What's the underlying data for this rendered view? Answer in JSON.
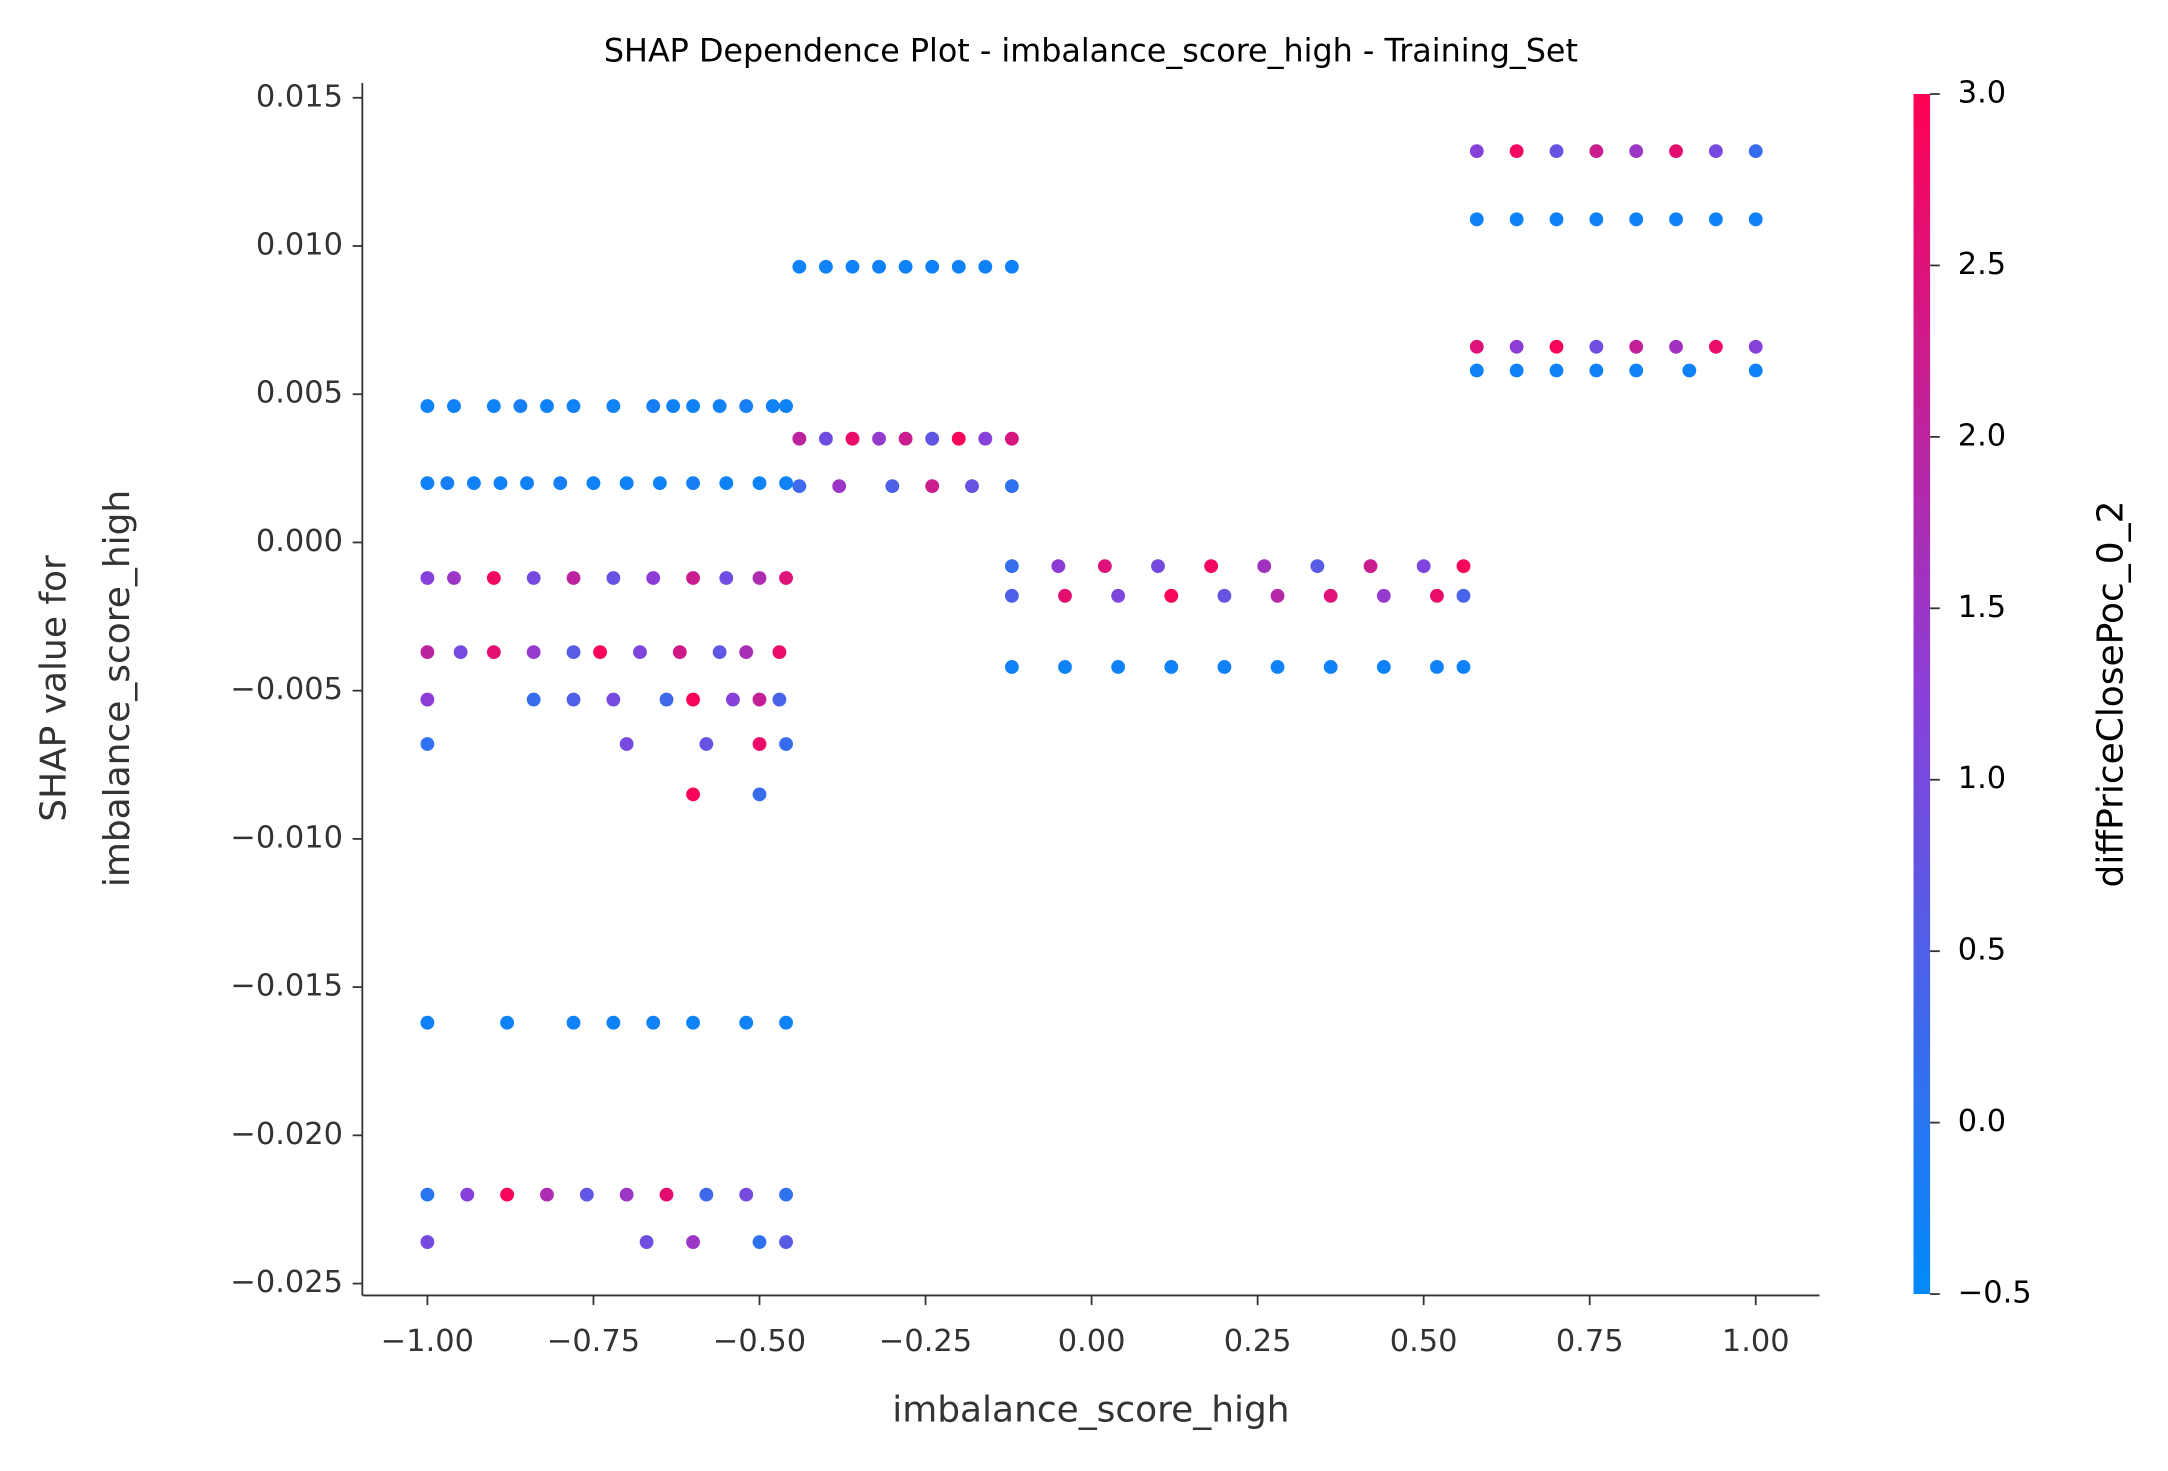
{
  "chart_data": {
    "type": "scatter",
    "title": "SHAP Dependence Plot - imbalance_score_high - Training_Set",
    "xlabel": "imbalance_score_high",
    "ylabel": [
      "SHAP value for",
      "imbalance_score_high"
    ],
    "colorbar_label": "diffPriceClosePoc_0_2",
    "colormap": [
      "#008bfb",
      "#8a3fd9",
      "#ff0052"
    ],
    "xlim": [
      -1.098,
      1.096
    ],
    "ylim": [
      -0.0254,
      0.0155
    ],
    "clim": [
      -0.5,
      3.0
    ],
    "xticks": [
      {
        "value": -1.0,
        "label": "−1.00"
      },
      {
        "value": -0.75,
        "label": "−0.75"
      },
      {
        "value": -0.5,
        "label": "−0.50"
      },
      {
        "value": -0.25,
        "label": "−0.25"
      },
      {
        "value": 0,
        "label": "0.00"
      },
      {
        "value": 0.25,
        "label": "0.25"
      },
      {
        "value": 0.5,
        "label": "0.50"
      },
      {
        "value": 0.75,
        "label": "0.75"
      },
      {
        "value": 1.0,
        "label": "1.00"
      }
    ],
    "yticks": [
      {
        "value": -0.025,
        "label": "−0.025"
      },
      {
        "value": -0.02,
        "label": "−0.020"
      },
      {
        "value": -0.015,
        "label": "−0.015"
      },
      {
        "value": -0.01,
        "label": "−0.010"
      },
      {
        "value": -0.005,
        "label": "−0.005"
      },
      {
        "value": 0,
        "label": "0.000"
      },
      0.005,
      {
        "value": 0.01,
        "label": "0.010"
      },
      0.015
    ],
    "cticks": [
      {
        "value": -0.5,
        "label": "−0.5"
      },
      {
        "value": 0,
        "label": "0.0"
      },
      0.5,
      {
        "value": 1.0,
        "label": "1.0"
      },
      1.5,
      {
        "value": 2.0,
        "label": "2.0"
      },
      2.5,
      {
        "value": 3.0,
        "label": "3.0"
      }
    ],
    "x": [
      -1,
      -0.96,
      -0.9,
      -0.86,
      -0.82,
      -0.78,
      -0.72,
      -0.66,
      -0.63,
      -0.6,
      -0.56,
      -0.52,
      -0.48,
      -0.46,
      -1,
      -0.97,
      -0.93,
      -0.89,
      -0.85,
      -0.8,
      -0.75,
      -0.7,
      -0.65,
      -0.6,
      -0.55,
      -0.5,
      -0.46,
      -1,
      -0.96,
      -0.9,
      -0.84,
      -0.78,
      -0.72,
      -0.66,
      -0.6,
      -0.55,
      -0.5,
      -0.46,
      -1,
      -0.95,
      -0.9,
      -0.84,
      -0.78,
      -0.74,
      -0.68,
      -0.62,
      -0.56,
      -0.52,
      -0.47,
      -1,
      -0.84,
      -0.78,
      -0.72,
      -0.64,
      -0.6,
      -0.54,
      -0.5,
      -0.47,
      -1,
      -0.7,
      -0.58,
      -0.5,
      -0.46,
      -0.6,
      -0.5,
      -1,
      -0.88,
      -0.78,
      -0.72,
      -0.66,
      -0.6,
      -0.52,
      -0.46,
      -1,
      -0.94,
      -0.88,
      -0.82,
      -0.76,
      -0.7,
      -0.64,
      -0.58,
      -0.52,
      -0.46,
      -1,
      -0.67,
      -0.6,
      -0.5,
      -0.46,
      -0.44,
      -0.4,
      -0.36,
      -0.32,
      -0.28,
      -0.24,
      -0.2,
      -0.16,
      -0.12,
      -0.44,
      -0.4,
      -0.36,
      -0.32,
      -0.28,
      -0.24,
      -0.2,
      -0.16,
      -0.12,
      -0.44,
      -0.38,
      -0.3,
      -0.24,
      -0.18,
      -0.12,
      -0.12,
      -0.05,
      0.02,
      0.1,
      0.18,
      0.26,
      0.34,
      0.42,
      0.5,
      0.56,
      -0.12,
      -0.04,
      0.04,
      0.12,
      0.2,
      0.28,
      0.36,
      0.44,
      0.52,
      0.56,
      -0.12,
      -0.04,
      0.04,
      0.12,
      0.2,
      0.28,
      0.36,
      0.44,
      0.52,
      0.56,
      0.58,
      0.64,
      0.7,
      0.76,
      0.82,
      0.88,
      0.94,
      1.0,
      0.58,
      0.64,
      0.7,
      0.76,
      0.82,
      0.88,
      0.94,
      1.0,
      0.58,
      0.64,
      0.7,
      0.76,
      0.82,
      0.88,
      0.94,
      1.0,
      0.58,
      0.64,
      0.7,
      0.76,
      0.82,
      0.9,
      1.0
    ],
    "values": [
      0.0046,
      0.0046,
      0.0046,
      0.0046,
      0.0046,
      0.0046,
      0.0046,
      0.0046,
      0.0046,
      0.0046,
      0.0046,
      0.0046,
      0.0046,
      0.0046,
      0.002,
      0.002,
      0.002,
      0.002,
      0.002,
      0.002,
      0.002,
      0.002,
      0.002,
      0.002,
      0.002,
      0.002,
      0.002,
      -0.0012,
      -0.0012,
      -0.0012,
      -0.0012,
      -0.0012,
      -0.0012,
      -0.0012,
      -0.0012,
      -0.0012,
      -0.0012,
      -0.0012,
      -0.0037,
      -0.0037,
      -0.0037,
      -0.0037,
      -0.0037,
      -0.0037,
      -0.0037,
      -0.0037,
      -0.0037,
      -0.0037,
      -0.0037,
      -0.0053,
      -0.0053,
      -0.0053,
      -0.0053,
      -0.0053,
      -0.0053,
      -0.0053,
      -0.0053,
      -0.0053,
      -0.0068,
      -0.0068,
      -0.0068,
      -0.0068,
      -0.0068,
      -0.0085,
      -0.0085,
      -0.0162,
      -0.0162,
      -0.0162,
      -0.0162,
      -0.0162,
      -0.0162,
      -0.0162,
      -0.0162,
      -0.022,
      -0.022,
      -0.022,
      -0.022,
      -0.022,
      -0.022,
      -0.022,
      -0.022,
      -0.022,
      -0.022,
      -0.0236,
      -0.0236,
      -0.0236,
      -0.0236,
      -0.0236,
      0.0093,
      0.0093,
      0.0093,
      0.0093,
      0.0093,
      0.0093,
      0.0093,
      0.0093,
      0.0093,
      0.0035,
      0.0035,
      0.0035,
      0.0035,
      0.0035,
      0.0035,
      0.0035,
      0.0035,
      0.0035,
      0.0019,
      0.0019,
      0.0019,
      0.0019,
      0.0019,
      0.0019,
      -0.0008,
      -0.0008,
      -0.0008,
      -0.0008,
      -0.0008,
      -0.0008,
      -0.0008,
      -0.0008,
      -0.0008,
      -0.0008,
      -0.0018,
      -0.0018,
      -0.0018,
      -0.0018,
      -0.0018,
      -0.0018,
      -0.0018,
      -0.0018,
      -0.0018,
      -0.0018,
      -0.0042,
      -0.0042,
      -0.0042,
      -0.0042,
      -0.0042,
      -0.0042,
      -0.0042,
      -0.0042,
      -0.0042,
      -0.0042,
      0.0132,
      0.0132,
      0.0132,
      0.0132,
      0.0132,
      0.0132,
      0.0132,
      0.0132,
      0.0109,
      0.0109,
      0.0109,
      0.0109,
      0.0109,
      0.0109,
      0.0109,
      0.0109,
      0.0066,
      0.0066,
      0.0066,
      0.0066,
      0.0066,
      0.0066,
      0.0066,
      0.0066,
      0.0058,
      0.0058,
      0.0058,
      0.0058,
      0.0058,
      0.0058,
      0.0058
    ],
    "color_values": [
      -0.3,
      -0.3,
      -0.3,
      -0.2,
      -0.3,
      -0.3,
      -0.3,
      -0.2,
      -0.3,
      -0.3,
      -0.3,
      -0.2,
      -0.3,
      -0.3,
      -0.3,
      -0.2,
      -0.3,
      -0.3,
      -0.3,
      -0.2,
      -0.3,
      -0.3,
      -0.3,
      -0.2,
      -0.3,
      -0.3,
      -0.3,
      1.2,
      1.5,
      2.8,
      1.0,
      2.0,
      0.8,
      1.3,
      2.2,
      0.9,
      1.8,
      2.5,
      2.0,
      1.0,
      2.6,
      1.4,
      0.6,
      2.9,
      1.1,
      2.3,
      0.7,
      1.7,
      2.7,
      1.3,
      0.2,
      0.5,
      1.0,
      0.3,
      2.9,
      1.2,
      2.1,
      0.4,
      0.1,
      1.0,
      0.8,
      2.7,
      0.2,
      2.9,
      0.2,
      -0.3,
      -0.3,
      -0.3,
      -0.3,
      -0.3,
      -0.3,
      -0.3,
      -0.3,
      0.0,
      1.2,
      2.9,
      1.8,
      0.7,
      1.5,
      2.6,
      0.3,
      1.0,
      0.1,
      1.0,
      0.9,
      1.5,
      0.1,
      0.6,
      -0.3,
      -0.3,
      -0.3,
      -0.3,
      -0.3,
      -0.3,
      -0.3,
      -0.3,
      -0.3,
      2.0,
      0.9,
      2.7,
      1.4,
      2.2,
      0.7,
      2.9,
      1.2,
      2.4,
      0.3,
      1.5,
      0.5,
      2.2,
      0.8,
      0.1,
      0.2,
      1.3,
      2.5,
      1.0,
      2.8,
      1.6,
      0.6,
      2.2,
      1.1,
      2.9,
      0.5,
      2.6,
      1.1,
      2.9,
      0.8,
      1.9,
      2.5,
      1.4,
      2.7,
      0.4,
      -0.3,
      -0.3,
      -0.3,
      -0.3,
      -0.3,
      -0.3,
      -0.3,
      -0.3,
      -0.3,
      -0.3,
      1.2,
      2.8,
      0.8,
      2.2,
      1.5,
      2.6,
      1.0,
      0.2,
      -0.3,
      -0.3,
      -0.3,
      -0.3,
      -0.3,
      -0.3,
      -0.3,
      -0.3,
      2.5,
      1.3,
      2.9,
      0.9,
      2.1,
      1.6,
      2.7,
      1.2,
      -0.3,
      -0.3,
      -0.3,
      -0.3,
      -0.3,
      -0.3,
      -0.3
    ]
  }
}
